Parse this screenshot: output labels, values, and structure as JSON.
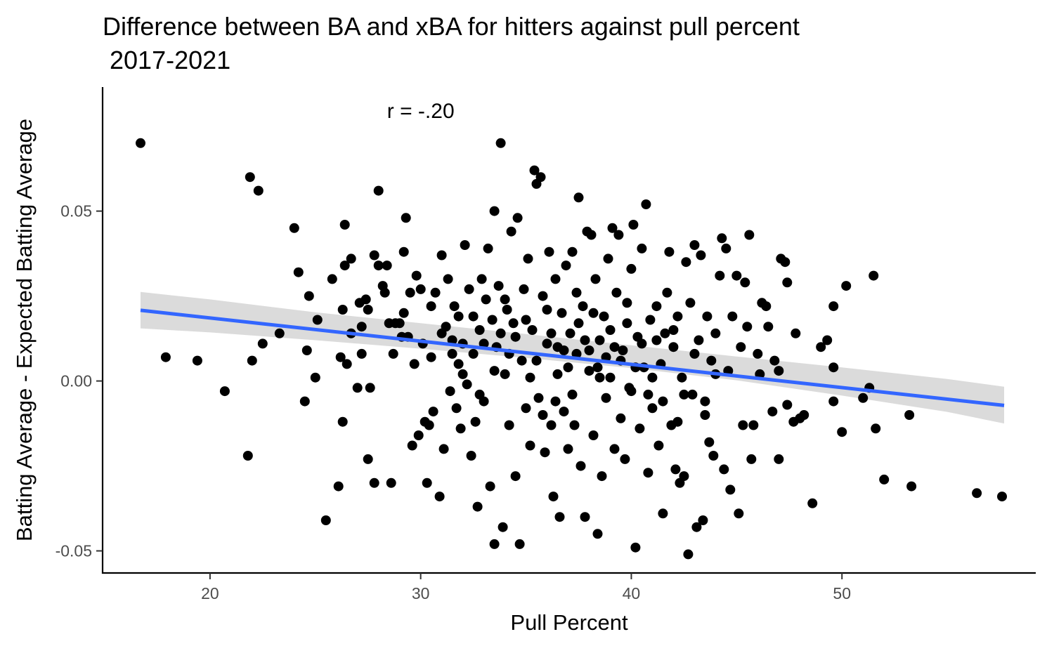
{
  "chart_data": {
    "type": "scatter",
    "title_line1": "Difference between BA and xBA for hitters against pull percent",
    "title_line2": " 2017-2021",
    "xlabel": "Pull Percent",
    "ylabel": "Batting Average - Expected Batting Average",
    "annotation": {
      "text": "r = -.20",
      "x": 30,
      "y": 0.0795
    },
    "xlim": [
      14.9,
      59.2
    ],
    "ylim": [
      -0.0565,
      0.0865
    ],
    "xticks": [
      20,
      30,
      40,
      50
    ],
    "xtick_labels": [
      "20",
      "30",
      "40",
      "50"
    ],
    "yticks": [
      -0.05,
      0.0,
      0.05
    ],
    "ytick_labels": [
      "-0.05",
      "0.00",
      "0.05"
    ],
    "grid": false,
    "legend": "none",
    "colors": {
      "points": "#000000",
      "trend_line": "#3366ff",
      "confidence_band": "#d9d9d9"
    },
    "trend_line": {
      "x": [
        16.7,
        57.7
      ],
      "y": [
        0.0208,
        -0.0072
      ]
    },
    "confidence_band": {
      "x": [
        16.7,
        20,
        25,
        30,
        35,
        40,
        45,
        50,
        55,
        57.7
      ],
      "lower": [
        0.0155,
        0.0143,
        0.012,
        0.0095,
        0.0068,
        0.0038,
        0.0002,
        -0.0043,
        -0.0091,
        -0.0125
      ],
      "upper": [
        0.0262,
        0.024,
        0.0202,
        0.017,
        0.0138,
        0.0105,
        0.0072,
        0.004,
        0.0006,
        -0.0017
      ]
    },
    "points": [
      [
        16.7,
        0.07
      ],
      [
        17.9,
        0.007
      ],
      [
        19.4,
        0.006
      ],
      [
        20.7,
        -0.003
      ],
      [
        21.8,
        -0.022
      ],
      [
        21.9,
        0.06
      ],
      [
        22.0,
        0.006
      ],
      [
        22.3,
        0.056
      ],
      [
        22.5,
        0.011
      ],
      [
        23.3,
        0.014
      ],
      [
        24.0,
        0.045
      ],
      [
        24.2,
        0.032
      ],
      [
        24.5,
        -0.006
      ],
      [
        24.6,
        0.009
      ],
      [
        24.7,
        0.025
      ],
      [
        25.0,
        0.001
      ],
      [
        25.1,
        0.018
      ],
      [
        25.5,
        -0.041
      ],
      [
        25.8,
        0.03
      ],
      [
        26.1,
        -0.031
      ],
      [
        26.2,
        0.007
      ],
      [
        26.3,
        -0.012
      ],
      [
        26.3,
        0.021
      ],
      [
        26.4,
        0.046
      ],
      [
        26.4,
        0.034
      ],
      [
        26.5,
        0.005
      ],
      [
        26.7,
        0.036
      ],
      [
        26.7,
        0.014
      ],
      [
        27.0,
        -0.002
      ],
      [
        27.1,
        0.023
      ],
      [
        27.2,
        0.016
      ],
      [
        27.2,
        0.008
      ],
      [
        27.4,
        0.024
      ],
      [
        27.5,
        -0.023
      ],
      [
        27.5,
        0.021
      ],
      [
        27.6,
        -0.002
      ],
      [
        27.8,
        -0.03
      ],
      [
        27.8,
        0.037
      ],
      [
        28.0,
        0.034
      ],
      [
        28.0,
        0.056
      ],
      [
        28.2,
        0.028
      ],
      [
        28.3,
        0.026
      ],
      [
        28.4,
        0.034
      ],
      [
        28.5,
        0.017
      ],
      [
        28.6,
        -0.03
      ],
      [
        28.7,
        0.008
      ],
      [
        28.8,
        0.017
      ],
      [
        29.0,
        0.017
      ],
      [
        29.1,
        0.013
      ],
      [
        29.2,
        0.038
      ],
      [
        29.2,
        0.02
      ],
      [
        29.3,
        0.048
      ],
      [
        29.4,
        0.013
      ],
      [
        29.5,
        0.026
      ],
      [
        29.6,
        -0.019
      ],
      [
        29.7,
        0.005
      ],
      [
        29.8,
        0.031
      ],
      [
        29.9,
        -0.016
      ],
      [
        30.0,
        0.027
      ],
      [
        30.1,
        0.011
      ],
      [
        30.2,
        -0.012
      ],
      [
        30.3,
        -0.03
      ],
      [
        30.4,
        -0.013
      ],
      [
        30.5,
        0.007
      ],
      [
        30.6,
        -0.009
      ],
      [
        30.7,
        0.026
      ],
      [
        30.9,
        -0.034
      ],
      [
        31.0,
        0.037
      ],
      [
        31.1,
        -0.02
      ],
      [
        31.2,
        0.016
      ],
      [
        31.3,
        0.03
      ],
      [
        31.4,
        -0.003
      ],
      [
        31.5,
        0.008
      ],
      [
        31.6,
        0.022
      ],
      [
        31.7,
        -0.008
      ],
      [
        31.8,
        0.005
      ],
      [
        31.9,
        -0.014
      ],
      [
        32.0,
        0.011
      ],
      [
        32.1,
        0.04
      ],
      [
        32.2,
        -0.001
      ],
      [
        32.3,
        0.027
      ],
      [
        32.4,
        -0.022
      ],
      [
        32.5,
        0.008
      ],
      [
        32.6,
        -0.012
      ],
      [
        32.7,
        -0.037
      ],
      [
        32.8,
        0.015
      ],
      [
        32.9,
        0.03
      ],
      [
        33.0,
        -0.006
      ],
      [
        33.1,
        0.024
      ],
      [
        33.2,
        0.039
      ],
      [
        33.3,
        -0.031
      ],
      [
        33.4,
        0.018
      ],
      [
        33.5,
        -0.048
      ],
      [
        33.5,
        0.05
      ],
      [
        33.6,
        0.01
      ],
      [
        33.7,
        0.028
      ],
      [
        33.8,
        0.07
      ],
      [
        33.9,
        -0.043
      ],
      [
        34.0,
        0.002
      ],
      [
        34.1,
        0.021
      ],
      [
        34.2,
        -0.013
      ],
      [
        34.3,
        0.044
      ],
      [
        34.4,
        0.017
      ],
      [
        34.5,
        -0.028
      ],
      [
        34.6,
        0.048
      ],
      [
        34.7,
        -0.048
      ],
      [
        34.8,
        0.006
      ],
      [
        34.9,
        0.027
      ],
      [
        35.0,
        -0.008
      ],
      [
        35.1,
        0.036
      ],
      [
        35.2,
        -0.019
      ],
      [
        35.3,
        0.015
      ],
      [
        35.4,
        0.062
      ],
      [
        35.5,
        0.058
      ],
      [
        35.6,
        -0.005
      ],
      [
        35.7,
        0.06
      ],
      [
        35.8,
        0.025
      ],
      [
        35.9,
        -0.021
      ],
      [
        36.0,
        0.011
      ],
      [
        36.1,
        0.038
      ],
      [
        36.2,
        -0.013
      ],
      [
        36.3,
        -0.034
      ],
      [
        36.4,
        0.03
      ],
      [
        36.5,
        0.002
      ],
      [
        36.6,
        -0.04
      ],
      [
        36.7,
        0.02
      ],
      [
        36.8,
        -0.009
      ],
      [
        36.9,
        0.034
      ],
      [
        37.0,
        -0.02
      ],
      [
        37.1,
        0.014
      ],
      [
        37.2,
        0.038
      ],
      [
        37.3,
        -0.013
      ],
      [
        37.4,
        0.008
      ],
      [
        37.5,
        0.054
      ],
      [
        37.6,
        -0.025
      ],
      [
        37.7,
        0.022
      ],
      [
        37.8,
        -0.04
      ],
      [
        37.9,
        0.044
      ],
      [
        38.0,
        0.003
      ],
      [
        38.1,
        0.043
      ],
      [
        38.2,
        -0.016
      ],
      [
        38.3,
        0.03
      ],
      [
        38.4,
        -0.045
      ],
      [
        38.5,
        0.012
      ],
      [
        38.6,
        -0.028
      ],
      [
        38.7,
        0.019
      ],
      [
        38.8,
        -0.005
      ],
      [
        38.9,
        0.036
      ],
      [
        39.0,
        0.001
      ],
      [
        39.1,
        0.045
      ],
      [
        39.2,
        -0.02
      ],
      [
        39.3,
        0.026
      ],
      [
        39.4,
        0.043
      ],
      [
        39.5,
        -0.011
      ],
      [
        39.6,
        0.009
      ],
      [
        39.7,
        -0.023
      ],
      [
        39.8,
        0.023
      ],
      [
        39.9,
        -0.002
      ],
      [
        40.0,
        0.033
      ],
      [
        40.1,
        0.046
      ],
      [
        40.2,
        -0.049
      ],
      [
        40.3,
        0.013
      ],
      [
        40.4,
        -0.014
      ],
      [
        40.5,
        0.039
      ],
      [
        40.6,
        0.004
      ],
      [
        40.7,
        0.052
      ],
      [
        40.8,
        -0.027
      ],
      [
        40.9,
        0.018
      ],
      [
        41.0,
        -0.008
      ],
      [
        41.2,
        0.022
      ],
      [
        41.3,
        -0.019
      ],
      [
        41.4,
        0.005
      ],
      [
        41.5,
        -0.039
      ],
      [
        41.6,
        0.014
      ],
      [
        41.7,
        0.026
      ],
      [
        41.8,
        0.038
      ],
      [
        41.9,
        -0.013
      ],
      [
        42.0,
        0.01
      ],
      [
        42.1,
        -0.026
      ],
      [
        42.2,
        0.019
      ],
      [
        42.3,
        -0.03
      ],
      [
        42.4,
        0.001
      ],
      [
        42.5,
        -0.028
      ],
      [
        42.6,
        0.035
      ],
      [
        42.7,
        -0.051
      ],
      [
        42.8,
        0.023
      ],
      [
        42.9,
        -0.004
      ],
      [
        43.0,
        0.04
      ],
      [
        43.1,
        -0.043
      ],
      [
        43.2,
        0.012
      ],
      [
        43.3,
        0.037
      ],
      [
        43.4,
        -0.041
      ],
      [
        43.5,
        -0.006
      ],
      [
        43.6,
        0.019
      ],
      [
        43.7,
        -0.018
      ],
      [
        43.8,
        0.006
      ],
      [
        43.9,
        -0.022
      ],
      [
        44.0,
        0.014
      ],
      [
        44.2,
        0.031
      ],
      [
        44.3,
        0.042
      ],
      [
        44.4,
        -0.026
      ],
      [
        44.5,
        0.039
      ],
      [
        44.6,
        0.003
      ],
      [
        44.7,
        -0.032
      ],
      [
        44.8,
        0.019
      ],
      [
        45.0,
        0.031
      ],
      [
        45.1,
        -0.039
      ],
      [
        45.2,
        0.01
      ],
      [
        45.3,
        -0.013
      ],
      [
        45.4,
        0.029
      ],
      [
        45.5,
        0.016
      ],
      [
        45.6,
        0.043
      ],
      [
        45.7,
        -0.023
      ],
      [
        45.8,
        -0.013
      ],
      [
        46.0,
        0.008
      ],
      [
        46.1,
        0.002
      ],
      [
        46.2,
        0.023
      ],
      [
        46.4,
        0.022
      ],
      [
        46.5,
        0.016
      ],
      [
        46.7,
        -0.009
      ],
      [
        46.8,
        0.006
      ],
      [
        47.0,
        0.003
      ],
      [
        47.0,
        -0.023
      ],
      [
        47.1,
        0.036
      ],
      [
        47.3,
        0.035
      ],
      [
        47.4,
        -0.007
      ],
      [
        47.4,
        0.029
      ],
      [
        47.7,
        -0.012
      ],
      [
        47.8,
        0.014
      ],
      [
        48.0,
        -0.011
      ],
      [
        48.2,
        -0.01
      ],
      [
        48.6,
        -0.036
      ],
      [
        49.0,
        0.01
      ],
      [
        49.3,
        0.012
      ],
      [
        49.6,
        0.022
      ],
      [
        49.6,
        0.004
      ],
      [
        49.6,
        -0.006
      ],
      [
        50.0,
        -0.015
      ],
      [
        50.2,
        0.028
      ],
      [
        51.0,
        -0.005
      ],
      [
        51.3,
        -0.002
      ],
      [
        51.5,
        0.031
      ],
      [
        51.6,
        -0.014
      ],
      [
        52.0,
        -0.029
      ],
      [
        53.2,
        -0.01
      ],
      [
        53.3,
        -0.031
      ],
      [
        56.4,
        -0.033
      ],
      [
        57.6,
        -0.034
      ],
      [
        30.5,
        0.022
      ],
      [
        31.0,
        0.014
      ],
      [
        31.5,
        0.012
      ],
      [
        32.0,
        0.002
      ],
      [
        32.5,
        0.019
      ],
      [
        33.0,
        0.011
      ],
      [
        33.5,
        0.003
      ],
      [
        34.0,
        0.024
      ],
      [
        34.5,
        0.013
      ],
      [
        35.0,
        0.018
      ],
      [
        35.5,
        0.006
      ],
      [
        36.0,
        0.021
      ],
      [
        36.5,
        0.01
      ],
      [
        37.0,
        0.004
      ],
      [
        37.5,
        0.017
      ],
      [
        38.0,
        0.009
      ],
      [
        38.5,
        0.001
      ],
      [
        39.0,
        0.015
      ],
      [
        39.5,
        0.006
      ],
      [
        40.0,
        -0.003
      ],
      [
        40.5,
        0.011
      ],
      [
        41.0,
        0.001
      ],
      [
        41.5,
        -0.006
      ],
      [
        42.0,
        0.015
      ],
      [
        42.5,
        -0.004
      ],
      [
        43.0,
        0.008
      ],
      [
        43.5,
        -0.01
      ],
      [
        44.0,
        0.002
      ],
      [
        34.2,
        0.008
      ],
      [
        35.2,
        0.001
      ],
      [
        36.2,
        0.014
      ],
      [
        37.2,
        -0.004
      ],
      [
        38.2,
        0.02
      ],
      [
        39.2,
        0.01
      ],
      [
        40.2,
        0.004
      ],
      [
        41.2,
        0.012
      ],
      [
        42.2,
        -0.012
      ],
      [
        36.8,
        0.009
      ],
      [
        37.8,
        0.012
      ],
      [
        38.8,
        0.007
      ],
      [
        39.8,
        0.017
      ],
      [
        40.8,
        -0.004
      ],
      [
        35.8,
        -0.01
      ],
      [
        33.8,
        0.014
      ],
      [
        32.8,
        -0.004
      ],
      [
        31.8,
        0.019
      ],
      [
        38.4,
        0.004
      ],
      [
        37.4,
        0.026
      ],
      [
        36.4,
        -0.006
      ]
    ]
  }
}
